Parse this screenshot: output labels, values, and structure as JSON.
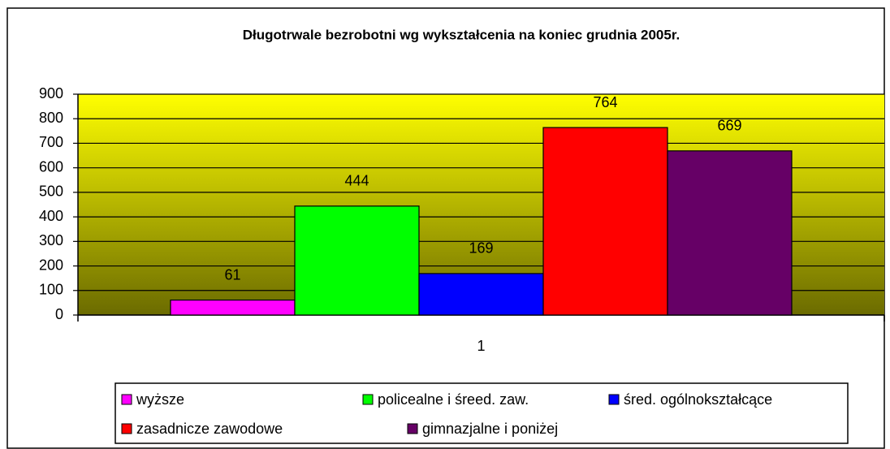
{
  "chart_data": {
    "type": "bar",
    "title": "Długotrwale bezrobotni wg wykształcenia na koniec grudnia 2005r.",
    "categories": [
      "1"
    ],
    "series": [
      {
        "name": "wyższe",
        "color": "#ff00ff",
        "values": [
          61
        ]
      },
      {
        "name": "policealne i śreed. zaw.",
        "color": "#00ff00",
        "values": [
          444
        ]
      },
      {
        "name": "śred. ogólnokształcące",
        "color": "#0000ff",
        "values": [
          169
        ]
      },
      {
        "name": "zasadnicze zawodowe",
        "color": "#ff0000",
        "values": [
          764
        ]
      },
      {
        "name": "gimnazjalne i poniżej",
        "color": "#660066",
        "values": [
          669
        ]
      }
    ],
    "ylim": [
      0,
      900
    ],
    "yticks": [
      0,
      100,
      200,
      300,
      400,
      500,
      600,
      700,
      800,
      900
    ],
    "grid": true,
    "legend": "bottom"
  }
}
